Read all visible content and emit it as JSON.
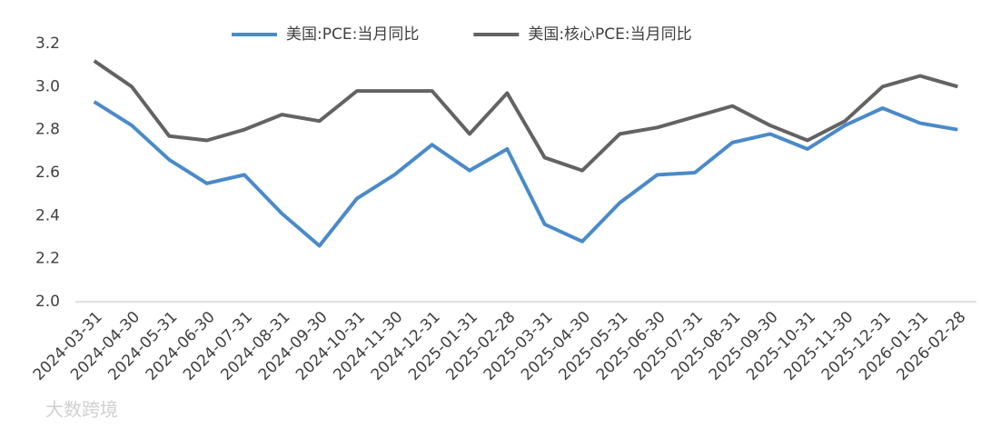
{
  "chart_data": {
    "type": "line",
    "categories": [
      "2024-03-31",
      "2024-04-30",
      "2024-05-31",
      "2024-06-30",
      "2024-07-31",
      "2024-08-31",
      "2024-09-30",
      "2024-10-31",
      "2024-11-30",
      "2024-12-31",
      "2025-01-31",
      "2025-02-28",
      "2025-03-31",
      "2025-04-30",
      "2025-05-31",
      "2025-06-30",
      "2025-07-31",
      "2025-08-31",
      "2025-09-30",
      "2025-10-31",
      "2025-11-30",
      "2025-12-31",
      "2026-01-31",
      "2026-02-28"
    ],
    "series": [
      {
        "name": "美国:PCE:当月同比",
        "color": "#4a8ac9",
        "values": [
          2.93,
          2.82,
          2.66,
          2.55,
          2.59,
          2.41,
          2.26,
          2.48,
          2.59,
          2.73,
          2.61,
          2.71,
          2.36,
          2.28,
          2.46,
          2.59,
          2.6,
          2.74,
          2.78,
          2.71,
          2.82,
          2.9,
          2.83,
          2.8
        ]
      },
      {
        "name": "美国:核心PCE:当月同比",
        "color": "#636363",
        "values": [
          3.12,
          3.0,
          2.77,
          2.75,
          2.8,
          2.87,
          2.84,
          2.98,
          2.98,
          2.98,
          2.78,
          2.97,
          2.67,
          2.61,
          2.78,
          2.81,
          2.86,
          2.91,
          2.82,
          2.75,
          2.84,
          3.0,
          3.05,
          3.0
        ]
      }
    ],
    "ylim": [
      2.0,
      3.2
    ],
    "yticks": [
      {
        "value": 2.0,
        "label": "2.0"
      },
      2.2,
      2.4,
      2.6,
      2.8,
      {
        "value": 3.0,
        "label": "3.0"
      },
      3.2
    ],
    "legend": "top",
    "watermark": "大数跨境"
  }
}
